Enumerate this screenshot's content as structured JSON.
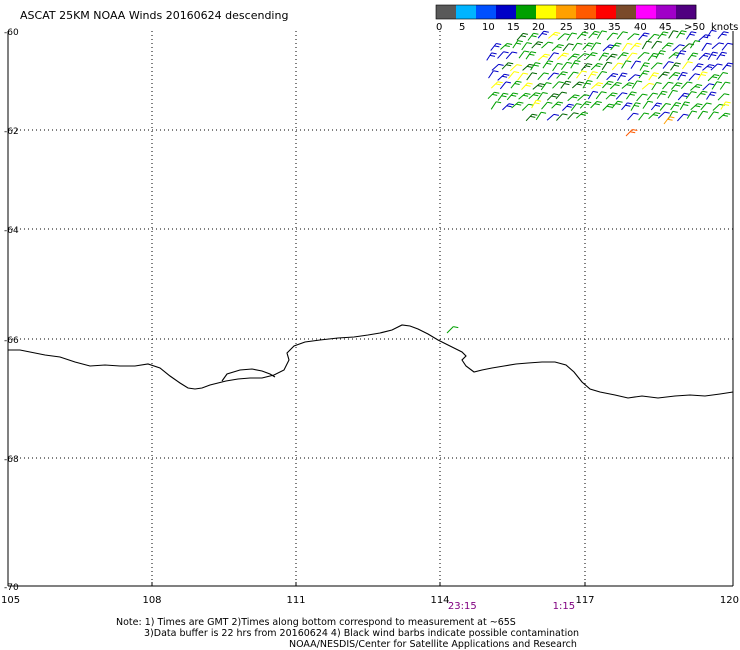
{
  "title": "ASCAT 25KM NOAA Winds 20160624 descending",
  "colorbar": {
    "units": "knots",
    "colors": [
      "#595959",
      "#00b4ff",
      "#0050ff",
      "#0000c8",
      "#00a000",
      "#ffff00",
      "#ffa000",
      "#ff5a00",
      "#ff0000",
      "#7a4a2a",
      "#ff00ff",
      "#a000c8",
      "#500080"
    ],
    "labels": [
      "0",
      "5",
      "10",
      "15",
      "20",
      "25",
      "30",
      "35",
      "40",
      "45",
      ">50"
    ]
  },
  "axes": {
    "x_ticks": [
      "105",
      "108",
      "111",
      "114",
      "117",
      "120"
    ],
    "y_ticks": [
      "-60",
      "-62",
      "-64",
      "-66",
      "-68",
      "-70"
    ],
    "lon_range": [
      105,
      120
    ],
    "lat_range": [
      -70,
      -60
    ]
  },
  "times": [
    {
      "label": "23:15",
      "lon": 114.4
    },
    {
      "label": "1:15",
      "lon": 116.5
    }
  ],
  "notes": {
    "line1": "Note: 1) Times are GMT 2)Times along bottom correspond to measurement at ~65S",
    "line2": "3)Data buffer is 22 hrs from 20160624 4) Black wind barbs indicate possible contamination",
    "line3": "NOAA/NESDIS/Center for Satellite Applications and Research"
  },
  "colors": {
    "time_label": "#800080",
    "grid": "#000000",
    "coast": "#000000"
  }
}
